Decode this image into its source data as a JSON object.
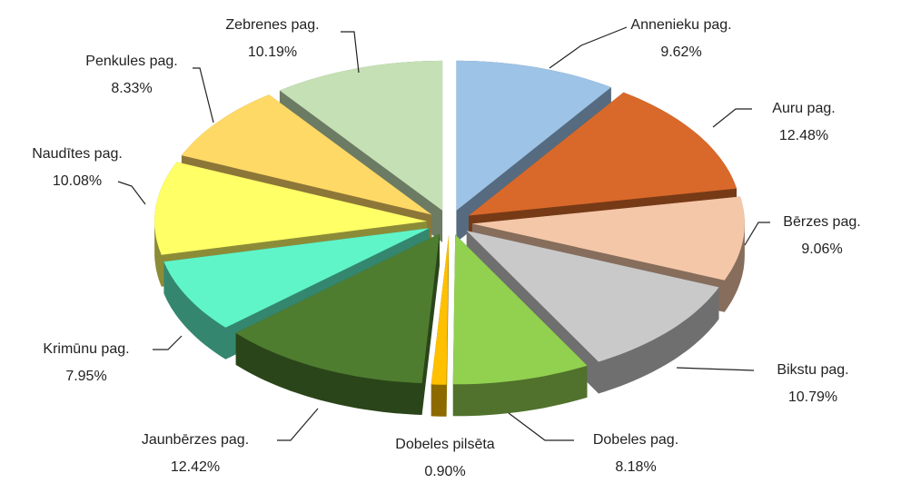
{
  "chart_data": {
    "type": "pie",
    "categories": [
      "Annenieku pag.",
      "Auru pag.",
      "Bērzes pag.",
      "Bikstu pag.",
      "Dobeles pag.",
      "Dobeles pilsēta",
      "Jaunbērzes pag.",
      "Krimūnu pag.",
      "Naudītes pag.",
      "Penkules pag.",
      "Zebrenes pag."
    ],
    "values": [
      9.62,
      12.48,
      9.06,
      10.79,
      8.18,
      0.9,
      12.42,
      7.95,
      10.08,
      8.33,
      10.19
    ],
    "value_labels": [
      "9.62%",
      "12.48%",
      "9.06%",
      "10.79%",
      "8.18%",
      "0.90%",
      "12.42%",
      "7.95%",
      "10.08%",
      "8.33%",
      "10.19%"
    ],
    "colors": [
      "#9dc3e6",
      "#d9692a",
      "#f4c7a8",
      "#c9c9c9",
      "#92d050",
      "#ffc000",
      "#4f7d30",
      "#5ff5c8",
      "#ffff66",
      "#ffd966",
      "#c5e0b4"
    ]
  }
}
